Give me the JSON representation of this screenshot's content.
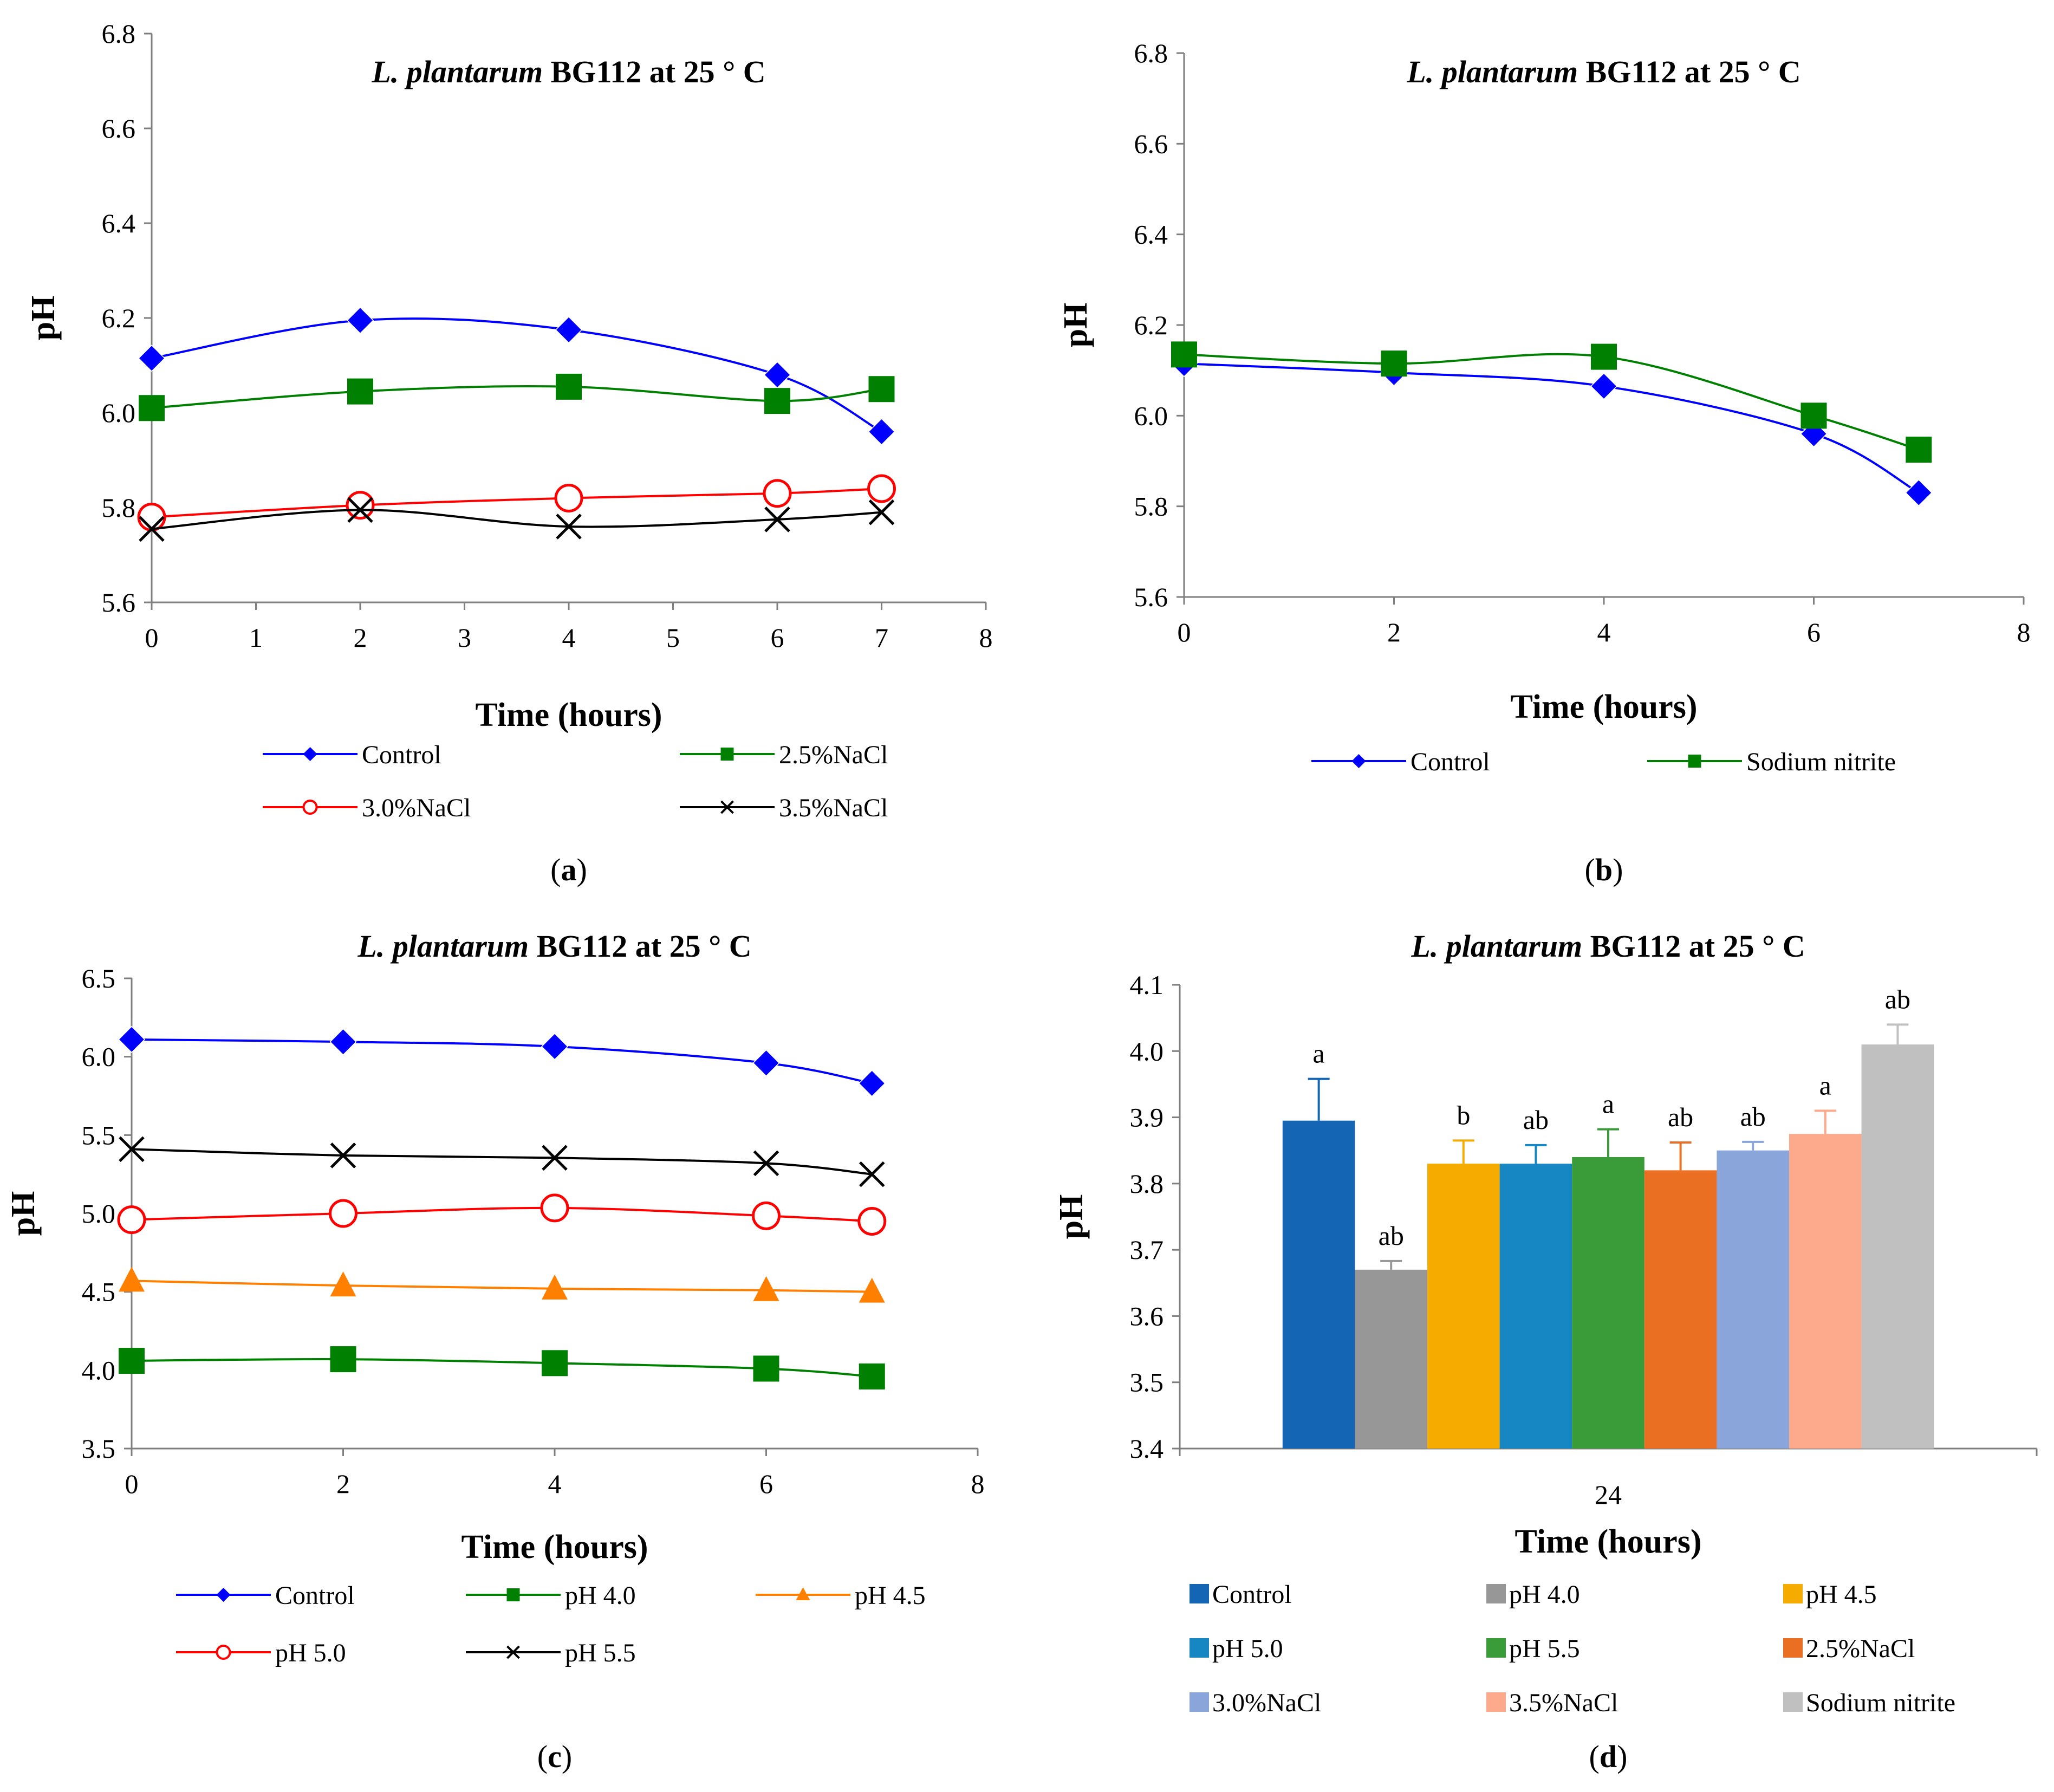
{
  "chart_data": [
    {
      "id": "a",
      "type": "line",
      "title": {
        "italic": "L. plantarum",
        "rest": " BG112 at 25 ° C"
      },
      "xlabel": "Time (hours)",
      "ylabel": "pH",
      "panel_label": "a",
      "xlim": [
        0,
        8
      ],
      "xticks": [
        0,
        1,
        2,
        3,
        4,
        5,
        6,
        7,
        8
      ],
      "ylim": [
        5.6,
        6.8
      ],
      "yticks": [
        "5.6",
        "5.8",
        "6.0",
        "6.2",
        "6.4",
        "6.6",
        "6.8"
      ],
      "legend_cols": 2,
      "series": [
        {
          "name": "Control",
          "color": "#0000ff",
          "marker": "diamond",
          "x": [
            0,
            2,
            4,
            6,
            7
          ],
          "values": [
            6.115,
            6.195,
            6.175,
            6.08,
            5.96
          ]
        },
        {
          "name": "2.5%NaCl",
          "color": "#008000",
          "marker": "square",
          "x": [
            0,
            2,
            4,
            6,
            7
          ],
          "values": [
            6.01,
            6.045,
            6.055,
            6.025,
            6.05
          ]
        },
        {
          "name": "3.0%NaCl",
          "color": "#ff0000",
          "marker": "circle",
          "x": [
            0,
            2,
            4,
            6,
            7
          ],
          "values": [
            5.78,
            5.805,
            5.82,
            5.83,
            5.84
          ]
        },
        {
          "name": "3.5%NaCl",
          "color": "#000000",
          "marker": "x",
          "x": [
            0,
            2,
            4,
            6,
            7
          ],
          "values": [
            5.755,
            5.795,
            5.76,
            5.775,
            5.79
          ]
        }
      ]
    },
    {
      "id": "b",
      "type": "line",
      "title": {
        "italic": "L. plantarum",
        "rest": " BG112 at 25 ° C"
      },
      "xlabel": "Time (hours)",
      "ylabel": "pH",
      "panel_label": "b",
      "xlim": [
        0,
        8
      ],
      "xticks": [
        0,
        2,
        4,
        6,
        8
      ],
      "ylim": [
        5.6,
        6.8
      ],
      "yticks": [
        "5.6",
        "5.8",
        "6.0",
        "6.2",
        "6.4",
        "6.6",
        "6.8"
      ],
      "legend_cols": 2,
      "series": [
        {
          "name": "Control",
          "color": "#0000ff",
          "marker": "diamond",
          "x": [
            0,
            2,
            4,
            6,
            7
          ],
          "values": [
            6.115,
            6.095,
            6.065,
            5.96,
            5.83
          ]
        },
        {
          "name": "Sodium nitrite",
          "color": "#008000",
          "marker": "square",
          "x": [
            0,
            2,
            4,
            6,
            7
          ],
          "values": [
            6.135,
            6.115,
            6.13,
            6.0,
            5.925
          ]
        }
      ]
    },
    {
      "id": "c",
      "type": "line",
      "title": {
        "italic": "L. plantarum",
        "rest": " BG112 at 25 ° C"
      },
      "xlabel": "Time (hours)",
      "ylabel": "pH",
      "panel_label": "c",
      "xlim": [
        0,
        8
      ],
      "xticks": [
        0,
        2,
        4,
        6,
        8
      ],
      "ylim": [
        3.5,
        6.5
      ],
      "yticks": [
        "3.5",
        "4.0",
        "4.5",
        "5.0",
        "5.5",
        "6.0",
        "6.5"
      ],
      "legend_cols": 3,
      "series": [
        {
          "name": "Control",
          "color": "#0000ff",
          "marker": "diamond",
          "x": [
            0,
            2,
            4,
            6,
            7
          ],
          "values": [
            6.11,
            6.095,
            6.065,
            5.96,
            5.83
          ]
        },
        {
          "name": "pH 4.0",
          "color": "#008000",
          "marker": "square",
          "x": [
            0,
            2,
            4,
            6,
            7
          ],
          "values": [
            4.06,
            4.07,
            4.045,
            4.01,
            3.96
          ]
        },
        {
          "name": "pH 4.5",
          "color": "#ff7f00",
          "marker": "triangle",
          "x": [
            0,
            2,
            4,
            6,
            7
          ],
          "values": [
            4.57,
            4.54,
            4.52,
            4.51,
            4.5
          ]
        },
        {
          "name": "pH 5.0",
          "color": "#ff0000",
          "marker": "circle",
          "x": [
            0,
            2,
            4,
            6,
            7
          ],
          "values": [
            4.96,
            5.0,
            5.035,
            4.985,
            4.95
          ]
        },
        {
          "name": "pH 5.5",
          "color": "#000000",
          "marker": "x",
          "x": [
            0,
            2,
            4,
            6,
            7
          ],
          "values": [
            5.41,
            5.37,
            5.355,
            5.32,
            5.25
          ]
        }
      ]
    },
    {
      "id": "d",
      "type": "bar",
      "title": {
        "italic": "L. plantarum",
        "rest": " BG112 at 25 ° C"
      },
      "xlabel": "Time (hours)",
      "ylabel": "pH",
      "panel_label": "d",
      "categories": [
        "24"
      ],
      "ylim": [
        3.4,
        4.1
      ],
      "yticks": [
        "3.4",
        "3.5",
        "3.6",
        "3.7",
        "3.8",
        "3.9",
        "4.0",
        "4.1"
      ],
      "legend_cols": 3,
      "series": [
        {
          "name": "Control",
          "color": "#1565b5",
          "values": [
            3.895
          ],
          "error": 0.063,
          "label": "a"
        },
        {
          "name": "pH 4.0",
          "color": "#979797",
          "values": [
            3.67
          ],
          "error": 0.013,
          "label": "ab"
        },
        {
          "name": "pH 4.5",
          "color": "#f5ab00",
          "values": [
            3.83
          ],
          "error": 0.035,
          "label": "b"
        },
        {
          "name": "pH 5.0",
          "color": "#1787c4",
          "values": [
            3.83
          ],
          "error": 0.028,
          "label": "ab"
        },
        {
          "name": "pH 5.5",
          "color": "#3a9c38",
          "values": [
            3.84
          ],
          "error": 0.042,
          "label": "a"
        },
        {
          "name": "2.5%NaCl",
          "color": "#ea6f22",
          "values": [
            3.82
          ],
          "error": 0.042,
          "label": "ab"
        },
        {
          "name": "3.0%NaCl",
          "color": "#8aa5da",
          "values": [
            3.85
          ],
          "error": 0.013,
          "label": "ab"
        },
        {
          "name": "3.5%NaCl",
          "color": "#fdaa8c",
          "values": [
            3.875
          ],
          "error": 0.035,
          "label": "a"
        },
        {
          "name": "Sodium nitrite",
          "color": "#c0c0c0",
          "values": [
            4.01
          ],
          "error": 0.03,
          "label": "ab"
        }
      ]
    }
  ]
}
